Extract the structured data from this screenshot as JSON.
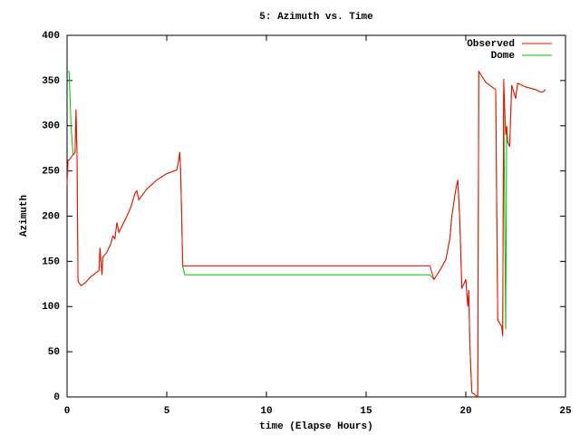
{
  "chart_data": {
    "type": "line",
    "title": "5: Azimuth vs. Time",
    "xlabel": "time (Elapse Hours)",
    "ylabel": "Azimuth",
    "x": [
      0,
      0.05,
      0.1,
      0.2,
      0.3,
      0.4,
      0.45,
      0.5,
      0.55,
      0.7,
      0.9,
      1.2,
      1.6,
      1.65,
      1.7,
      1.75,
      1.8,
      2.0,
      2.2,
      2.3,
      2.4,
      2.5,
      2.6,
      3.0,
      3.2,
      3.4,
      3.5,
      3.6,
      4.0,
      4.5,
      5.0,
      5.5,
      5.6,
      5.65,
      5.7,
      5.8,
      5.9,
      18.2,
      18.4,
      18.7,
      19.0,
      19.2,
      19.3,
      19.5,
      19.6,
      19.7,
      19.8,
      20.0,
      20.1,
      20.15,
      20.2,
      20.3,
      20.6,
      20.65,
      20.8,
      21.0,
      21.5,
      21.6,
      21.8,
      21.85,
      21.9,
      22.0,
      22.05,
      22.1,
      22.2,
      22.3,
      22.5,
      22.6,
      23.0,
      23.5,
      23.8,
      23.9,
      24.0
    ],
    "series": [
      {
        "name": "Observed",
        "color": "#ff0000",
        "values": [
          235,
          262,
          262,
          265,
          268,
          270,
          318,
          270,
          128,
          123,
          126,
          133,
          140,
          165,
          150,
          135,
          155,
          160,
          170,
          178,
          175,
          193,
          182,
          200,
          210,
          225,
          228,
          218,
          230,
          240,
          247,
          251,
          262,
          271,
          250,
          145,
          145,
          145,
          130,
          140,
          152,
          175,
          200,
          230,
          240,
          195,
          120,
          130,
          100,
          118,
          60,
          5,
          0,
          360,
          355,
          348,
          340,
          85,
          78,
          67,
          352,
          290,
          300,
          282,
          277,
          345,
          330,
          347,
          343,
          340,
          337,
          338,
          340
        ]
      },
      {
        "name": "Dome",
        "color": "#00c000",
        "values": [
          360,
          360,
          360,
          300,
          268,
          270,
          318,
          270,
          128,
          123,
          126,
          133,
          140,
          165,
          150,
          135,
          155,
          160,
          170,
          178,
          175,
          193,
          182,
          200,
          210,
          225,
          228,
          218,
          230,
          240,
          247,
          251,
          262,
          271,
          250,
          145,
          135,
          135,
          130,
          140,
          152,
          175,
          200,
          230,
          240,
          195,
          120,
          130,
          100,
          118,
          60,
          5,
          0,
          360,
          355,
          348,
          340,
          85,
          78,
          70,
          335,
          75,
          300,
          282,
          277,
          345,
          330,
          347,
          343,
          340,
          337,
          338,
          340
        ]
      }
    ],
    "xlim": [
      0,
      25
    ],
    "xticks": [
      0,
      5,
      10,
      15,
      20,
      25
    ],
    "ylim": [
      0,
      400
    ],
    "yticks": [
      0,
      50,
      100,
      150,
      200,
      250,
      300,
      350,
      400
    ],
    "legend": "upper right"
  }
}
